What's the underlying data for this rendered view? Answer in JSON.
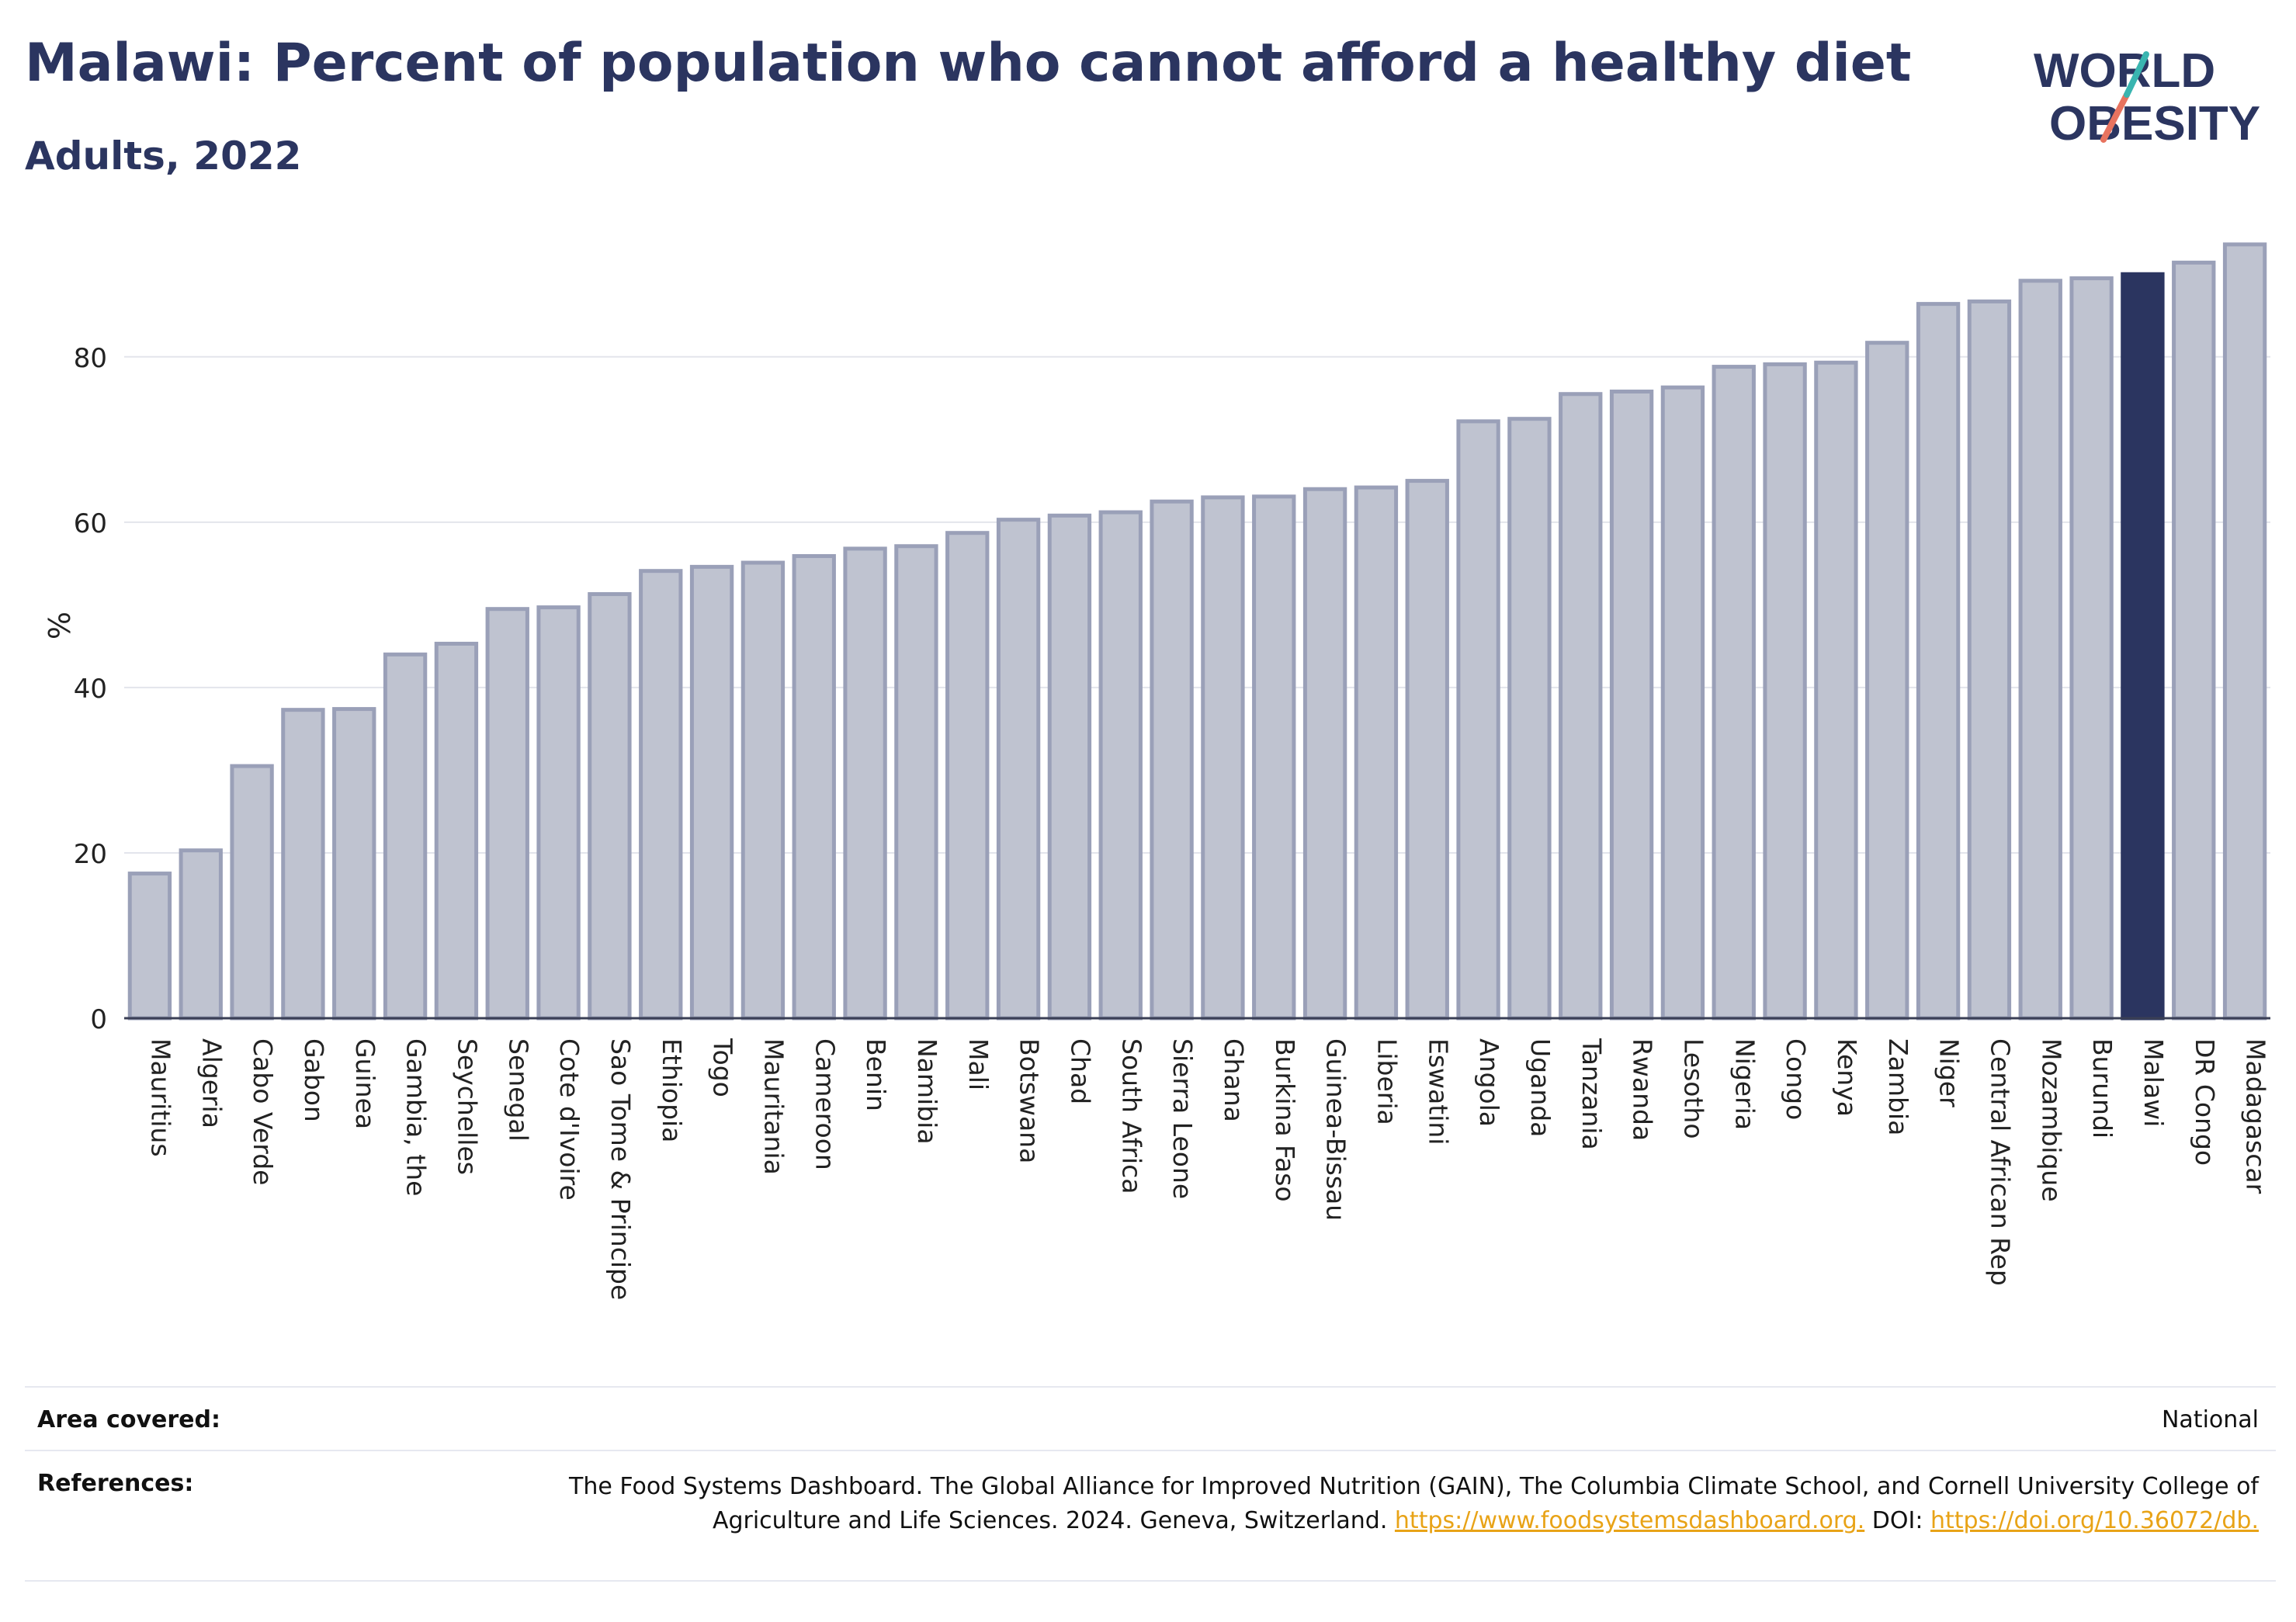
{
  "header": {
    "title": "Malawi: Percent of population who cannot afford a healthy diet",
    "subtitle": "Adults, 2022",
    "logo_line1": "WORLD",
    "logo_line2": "OBESITY"
  },
  "chart_data": {
    "type": "bar",
    "ylabel": "%",
    "xlabel": "",
    "ylim": [
      0,
      95
    ],
    "yticks": [
      0,
      20,
      40,
      60,
      80
    ],
    "grid": true,
    "highlight": "Malawi",
    "categories": [
      "Mauritius",
      "Algeria",
      "Cabo Verde",
      "Gabon",
      "Guinea",
      "Gambia, the",
      "Seychelles",
      "Senegal",
      "Cote d'Ivoire",
      "Sao Tome & Principe",
      "Ethiopia",
      "Togo",
      "Mauritania",
      "Cameroon",
      "Benin",
      "Namibia",
      "Mali",
      "Botswana",
      "Chad",
      "South Africa",
      "Sierra Leone",
      "Ghana",
      "Burkina Faso",
      "Guinea-Bissau",
      "Liberia",
      "Eswatini",
      "Angola",
      "Uganda",
      "Tanzania",
      "Rwanda",
      "Lesotho",
      "Nigeria",
      "Congo",
      "Kenya",
      "Zambia",
      "Niger",
      "Central African Rep",
      "Mozambique",
      "Burundi",
      "Malawi",
      "DR Congo",
      "Madagascar"
    ],
    "values": [
      17.5,
      20.3,
      30.5,
      37.3,
      37.4,
      44.0,
      45.3,
      49.5,
      49.7,
      51.3,
      54.1,
      54.6,
      55.1,
      55.9,
      56.8,
      57.1,
      58.7,
      60.3,
      60.8,
      61.2,
      62.5,
      63.0,
      63.1,
      64.0,
      64.2,
      65.0,
      72.2,
      72.5,
      75.5,
      75.8,
      76.3,
      78.8,
      79.1,
      79.3,
      81.7,
      86.4,
      86.7,
      89.2,
      89.5,
      90.0,
      91.4,
      93.6
    ],
    "colors": {
      "bar": "#bfc3d0",
      "bar_border": "#9aa0b8",
      "highlight": "#2b3560"
    }
  },
  "footer": {
    "area_label": "Area covered:",
    "area_value": "National",
    "ref_label": "References:",
    "ref_text": "The Food Systems Dashboard. The Global Alliance for Improved Nutrition (GAIN), The Columbia Climate School, and Cornell University College of Agriculture and Life Sciences. 2024. Geneva, Switzerland.",
    "ref_link1": "https://www.foodsystemsdashboard.org.",
    "ref_doi_label": "DOI:",
    "ref_link2": "https://doi.org/10.36072/db."
  }
}
